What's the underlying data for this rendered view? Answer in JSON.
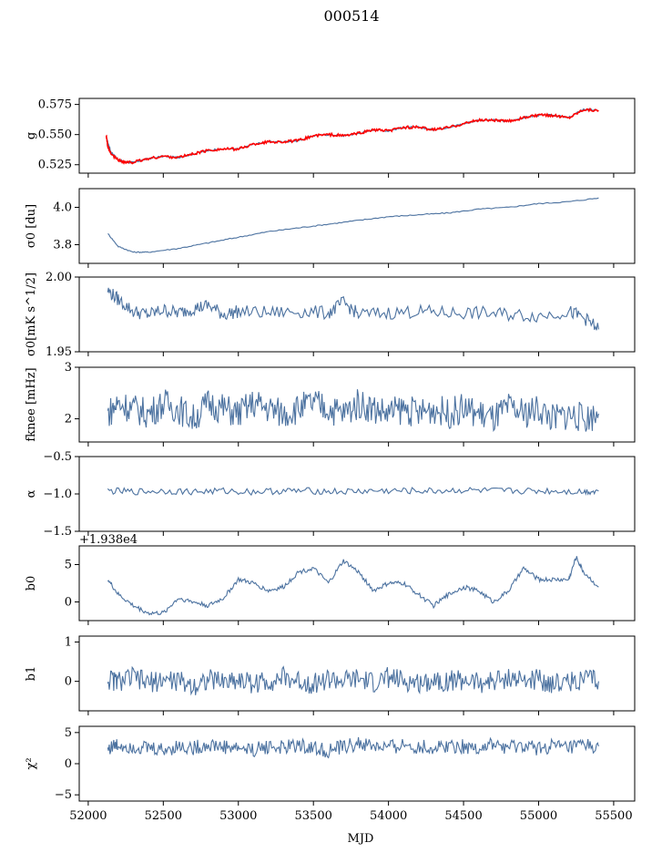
{
  "figure": {
    "title": "000514",
    "xlabel": "MJD",
    "x_ticks": [
      52000,
      52500,
      53000,
      53500,
      54000,
      54500,
      55000,
      55500
    ],
    "xlim": [
      51940,
      55640
    ],
    "line_color": "#4c72a0",
    "fit_color": "#ff0000"
  },
  "chart_data": [
    {
      "type": "line",
      "ylabel": "g",
      "ylim": [
        0.518,
        0.58
      ],
      "yticks": [
        0.525,
        0.55,
        0.575
      ],
      "ytick_labels": [
        "0.525",
        "0.550",
        "0.575"
      ],
      "series": [
        {
          "x": [
            52120,
            52150,
            52200,
            52250,
            52300,
            52400,
            52500,
            52600,
            52700,
            52800,
            52900,
            53000,
            53100,
            53200,
            53300,
            53400,
            53500,
            53600,
            53700,
            53800,
            53900,
            54000,
            54100,
            54200,
            54300,
            54400,
            54500,
            54600,
            54700,
            54800,
            54900,
            55000,
            55100,
            55200,
            55300,
            55400
          ],
          "y": [
            0.548,
            0.536,
            0.529,
            0.527,
            0.527,
            0.53,
            0.532,
            0.531,
            0.534,
            0.537,
            0.538,
            0.538,
            0.542,
            0.544,
            0.544,
            0.545,
            0.549,
            0.55,
            0.549,
            0.551,
            0.554,
            0.553,
            0.556,
            0.556,
            0.554,
            0.556,
            0.559,
            0.562,
            0.562,
            0.561,
            0.564,
            0.566,
            0.566,
            0.564,
            0.571,
            0.57
          ]
        }
      ],
      "overlay": {
        "x": [
          52120,
          52130,
          52150,
          52200,
          52250,
          52300,
          52400,
          52500,
          52600,
          52700,
          52800,
          52900,
          53000,
          53100,
          53200,
          53300,
          53400,
          53500,
          53600,
          53700,
          53800,
          53900,
          54000,
          54100,
          54200,
          54300,
          54400,
          54500,
          54600,
          54700,
          54800,
          54900,
          55000,
          55100,
          55200,
          55300,
          55400
        ],
        "y": [
          0.55,
          0.54,
          0.534,
          0.529,
          0.527,
          0.527,
          0.53,
          0.532,
          0.531,
          0.534,
          0.537,
          0.538,
          0.538,
          0.542,
          0.544,
          0.544,
          0.545,
          0.549,
          0.55,
          0.549,
          0.551,
          0.554,
          0.553,
          0.556,
          0.556,
          0.554,
          0.556,
          0.559,
          0.562,
          0.562,
          0.561,
          0.564,
          0.566,
          0.566,
          0.564,
          0.571,
          0.57
        ]
      }
    },
    {
      "type": "line",
      "ylabel": "σ0 [du]",
      "ylim": [
        3.7,
        4.1
      ],
      "yticks": [
        3.8,
        4.0
      ],
      "ytick_labels": [
        "3.8",
        "4.0"
      ],
      "series": [
        {
          "x": [
            52130,
            52200,
            52300,
            52400,
            52600,
            52800,
            53000,
            53200,
            53400,
            53600,
            53800,
            54000,
            54200,
            54400,
            54600,
            54800,
            55000,
            55200,
            55400
          ],
          "y": [
            3.86,
            3.79,
            3.76,
            3.76,
            3.78,
            3.81,
            3.84,
            3.87,
            3.89,
            3.91,
            3.93,
            3.95,
            3.96,
            3.97,
            3.99,
            4.0,
            4.02,
            4.03,
            4.05
          ]
        }
      ]
    },
    {
      "type": "line",
      "ylabel": "σ0[mK s^1/2]",
      "ylim": [
        1.95,
        2.0
      ],
      "yticks": [
        1.95,
        2.0
      ],
      "ytick_labels": [
        "1.95",
        "2.00"
      ],
      "series": [
        {
          "x": [
            52130,
            52200,
            52300,
            52400,
            52500,
            52600,
            52700,
            52800,
            52900,
            53000,
            53200,
            53400,
            53600,
            53700,
            53800,
            54000,
            54200,
            54400,
            54600,
            54800,
            55000,
            55200,
            55300,
            55400
          ],
          "y": [
            1.991,
            1.985,
            1.977,
            1.975,
            1.978,
            1.976,
            1.979,
            1.981,
            1.975,
            1.977,
            1.976,
            1.977,
            1.976,
            1.983,
            1.975,
            1.976,
            1.977,
            1.976,
            1.976,
            1.975,
            1.974,
            1.977,
            1.973,
            1.965
          ]
        }
      ]
    },
    {
      "type": "line",
      "ylabel": "fknee [mHz]",
      "ylim": [
        1.55,
        3.0
      ],
      "yticks": [
        2,
        3
      ],
      "ytick_labels": [
        "2",
        "3"
      ],
      "series": [
        {
          "x": [
            52130,
            52200,
            52300,
            52400,
            52500,
            52600,
            52700,
            52800,
            52900,
            53000,
            53100,
            53200,
            53300,
            53400,
            53500,
            53600,
            53700,
            53800,
            53900,
            54000,
            54100,
            54200,
            54300,
            54400,
            54500,
            54600,
            54700,
            54800,
            54900,
            55000,
            55100,
            55200,
            55300,
            55400
          ],
          "y": [
            2.1,
            2.3,
            2.2,
            2.1,
            2.3,
            2.2,
            2.0,
            2.3,
            2.2,
            2.1,
            2.3,
            2.2,
            2.1,
            2.2,
            2.3,
            2.2,
            2.1,
            2.3,
            2.2,
            2.1,
            2.2,
            2.1,
            2.2,
            2.1,
            2.2,
            2.1,
            2.0,
            2.2,
            2.1,
            2.2,
            2.0,
            2.1,
            2.0,
            2.1
          ]
        }
      ]
    },
    {
      "type": "line",
      "ylabel": "α",
      "ylim": [
        -1.5,
        -0.5
      ],
      "yticks": [
        -1.5,
        -1.0,
        -0.5
      ],
      "ytick_labels": [
        "−1.5",
        "−1.0",
        "−0.5"
      ],
      "series": [
        {
          "x": [
            52130,
            52300,
            52500,
            52700,
            52900,
            53100,
            53300,
            53500,
            53700,
            53900,
            54100,
            54300,
            54500,
            54700,
            54900,
            55100,
            55300,
            55400
          ],
          "y": [
            -0.96,
            -0.97,
            -0.96,
            -0.97,
            -0.96,
            -0.97,
            -0.96,
            -0.96,
            -0.97,
            -0.96,
            -0.96,
            -0.96,
            -0.95,
            -0.96,
            -0.96,
            -0.96,
            -0.97,
            -0.96
          ]
        }
      ]
    },
    {
      "type": "line",
      "ylabel": "b0",
      "offset_text": "+1.938e4",
      "ylim": [
        -2.5,
        7.5
      ],
      "yticks": [
        0,
        5
      ],
      "ytick_labels": [
        "0",
        "5"
      ],
      "series": [
        {
          "x": [
            52130,
            52200,
            52300,
            52400,
            52500,
            52600,
            52700,
            52800,
            52900,
            53000,
            53100,
            53200,
            53300,
            53400,
            53500,
            53600,
            53700,
            53800,
            53900,
            54000,
            54100,
            54200,
            54300,
            54400,
            54500,
            54600,
            54700,
            54800,
            54900,
            55000,
            55100,
            55200,
            55250,
            55300,
            55400
          ],
          "y": [
            3.0,
            1.0,
            -0.5,
            -1.5,
            -1.5,
            0.5,
            0.0,
            -0.5,
            0.5,
            3.0,
            2.5,
            1.5,
            2.0,
            4.0,
            4.5,
            2.5,
            5.5,
            4.0,
            1.5,
            2.5,
            2.5,
            1.0,
            -0.5,
            1.0,
            2.0,
            1.5,
            0.0,
            1.5,
            4.5,
            3.0,
            3.0,
            3.0,
            6.0,
            4.0,
            2.0
          ]
        }
      ]
    },
    {
      "type": "line",
      "ylabel": "b1",
      "ylim": [
        -0.75,
        1.15
      ],
      "yticks": [
        0,
        1
      ],
      "ytick_labels": [
        "0",
        "1"
      ],
      "series": [
        {
          "x": [
            52130,
            52200,
            52300,
            52400,
            52500,
            52600,
            52700,
            52800,
            52900,
            53000,
            53100,
            53200,
            53300,
            53400,
            53500,
            53600,
            53700,
            53800,
            53900,
            54000,
            54100,
            54200,
            54300,
            54400,
            54500,
            54600,
            54700,
            54800,
            54900,
            55000,
            55100,
            55200,
            55300,
            55400
          ],
          "y": [
            0.05,
            0.0,
            0.1,
            -0.05,
            0.05,
            0.0,
            -0.1,
            0.05,
            0.0,
            0.05,
            -0.05,
            0.0,
            0.1,
            0.0,
            -0.05,
            0.05,
            0.0,
            0.05,
            -0.05,
            0.1,
            0.0,
            -0.05,
            0.05,
            0.0,
            0.05,
            -0.05,
            0.0,
            0.1,
            0.0,
            0.05,
            -0.05,
            0.0,
            0.05,
            0.0
          ]
        }
      ]
    },
    {
      "type": "line",
      "ylabel": "χ²",
      "ylim": [
        -6,
        6
      ],
      "yticks": [
        -5,
        0,
        5
      ],
      "ytick_labels": [
        "−5",
        "0",
        "5"
      ],
      "series": [
        {
          "x": [
            52130,
            52200,
            52300,
            52400,
            52500,
            52600,
            52700,
            52800,
            52900,
            53000,
            53100,
            53200,
            53300,
            53400,
            53500,
            53600,
            53700,
            53800,
            53900,
            54000,
            54100,
            54200,
            54300,
            54400,
            54500,
            54600,
            54700,
            54800,
            54900,
            55000,
            55100,
            55200,
            55300,
            55400
          ],
          "y": [
            2.5,
            3.0,
            2.8,
            2.5,
            2.2,
            2.8,
            2.5,
            3.0,
            2.7,
            2.5,
            2.2,
            2.8,
            2.5,
            3.0,
            2.5,
            2.0,
            2.7,
            3.2,
            2.8,
            2.5,
            3.0,
            2.7,
            2.5,
            3.0,
            2.8,
            2.5,
            3.0,
            2.5,
            2.8,
            2.5,
            2.8,
            2.5,
            3.0,
            2.8
          ]
        }
      ]
    }
  ]
}
